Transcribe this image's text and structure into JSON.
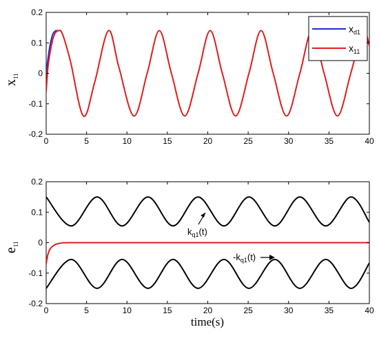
{
  "chart_data": [
    {
      "type": "line",
      "ylabel_main": "x",
      "ylabel_sub": "11",
      "xlabel": "",
      "xlim": [
        0,
        40
      ],
      "ylim": [
        -0.2,
        0.2
      ],
      "xticks": [
        0,
        5,
        10,
        15,
        20,
        25,
        30,
        35,
        40
      ],
      "yticks": [
        -0.2,
        -0.1,
        0,
        0.1,
        0.2
      ],
      "xtick_labels": [
        "0",
        "5",
        "10",
        "15",
        "20",
        "25",
        "30",
        "35",
        "40"
      ],
      "ytick_labels": [
        "-0.2",
        "-0.1",
        "0",
        "0.1",
        "0.2"
      ],
      "grid": false,
      "legend_position": "top-right",
      "series": [
        {
          "name_main": "x",
          "name_sub": "d1",
          "color": "#1f2bd6",
          "x": [
            0,
            0.2,
            0.4,
            0.6,
            0.8,
            1.0,
            1.2,
            1.5
          ],
          "y": [
            0.0,
            0.042,
            0.08,
            0.107,
            0.127,
            0.136,
            0.14,
            0.14
          ]
        },
        {
          "name_main": "x",
          "name_sub": "11",
          "color": "#e01b1b",
          "x": [
            0,
            0.2,
            0.4,
            0.6,
            0.8,
            1.0,
            1.2,
            1.5,
            2,
            3,
            4.6,
            6,
            7.7,
            9,
            10.85,
            12.5,
            14.0,
            15.5,
            17.15,
            18.8,
            20.3,
            21.8,
            23.45,
            25.1,
            26.6,
            28.1,
            29.75,
            31.4,
            32.9,
            34.4,
            36.05,
            37.7,
            39.2,
            40
          ],
          "y": [
            -0.06,
            0.015,
            0.055,
            0.085,
            0.11,
            0.126,
            0.135,
            0.14,
            0.13,
            0.04,
            -0.14,
            -0.03,
            0.14,
            0.02,
            -0.14,
            0.0,
            0.14,
            0.0,
            -0.14,
            0.0,
            0.14,
            0.0,
            -0.14,
            0.0,
            0.14,
            0.0,
            -0.14,
            0.0,
            0.14,
            0.0,
            -0.14,
            0.0,
            0.14,
            0.09
          ]
        }
      ]
    },
    {
      "type": "line",
      "ylabel_main": "e",
      "ylabel_sub": "11",
      "xlabel": "time(s)",
      "xlim": [
        0,
        40
      ],
      "ylim": [
        -0.2,
        0.2
      ],
      "xticks": [
        0,
        5,
        10,
        15,
        20,
        25,
        30,
        35,
        40
      ],
      "yticks": [
        -0.2,
        -0.1,
        0,
        0.1,
        0.2
      ],
      "xtick_labels": [
        "0",
        "5",
        "10",
        "15",
        "20",
        "25",
        "30",
        "35",
        "40"
      ],
      "ytick_labels": [
        "-0.2",
        "-0.1",
        "0",
        "0.1",
        "0.2"
      ],
      "grid": false,
      "series": [
        {
          "name": "k_q1(t)",
          "color": "#000000",
          "x": [
            0,
            3.1,
            6.3,
            9.4,
            12.6,
            15.7,
            18.8,
            22.0,
            25.1,
            28.3,
            31.4,
            34.6,
            37.7,
            40
          ],
          "y": [
            0.15,
            0.055,
            0.15,
            0.055,
            0.15,
            0.055,
            0.15,
            0.055,
            0.15,
            0.055,
            0.15,
            0.055,
            0.15,
            0.067
          ]
        },
        {
          "name": "-k_q1(t)",
          "color": "#000000",
          "x": [
            0,
            3.1,
            6.3,
            9.4,
            12.6,
            15.7,
            18.8,
            22.0,
            25.1,
            28.3,
            31.4,
            34.6,
            37.7,
            40
          ],
          "y": [
            -0.15,
            -0.055,
            -0.15,
            -0.055,
            -0.15,
            -0.055,
            -0.15,
            -0.055,
            -0.15,
            -0.055,
            -0.15,
            -0.055,
            -0.15,
            -0.067
          ]
        },
        {
          "name": "e_11",
          "color": "#e01b1b",
          "x": [
            0,
            0.2,
            0.5,
            1,
            1.5,
            2,
            3,
            10,
            20,
            30,
            40
          ],
          "y": [
            -0.07,
            -0.04,
            -0.02,
            -0.008,
            -0.003,
            -0.001,
            0.0,
            0.0,
            0.0,
            0.0,
            0.0
          ]
        }
      ],
      "annotations": [
        {
          "main": "k",
          "sub": "q1",
          "suffix": "(t)",
          "x": 19.0,
          "y": 0.08
        },
        {
          "main": "-k",
          "sub": "q1",
          "suffix": "(t)",
          "x": 28.2,
          "y": -0.05
        }
      ]
    }
  ]
}
